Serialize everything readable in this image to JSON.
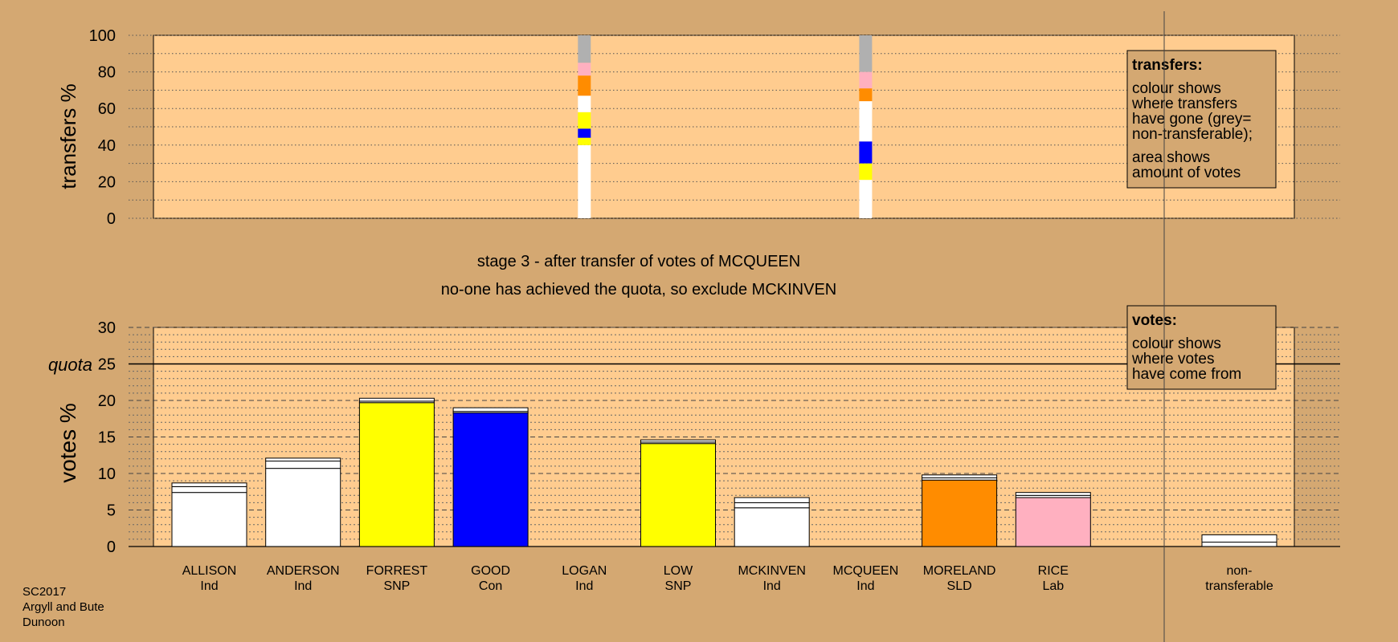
{
  "chart_data": {
    "type": "bar",
    "colors": {
      "background": "#D4A872",
      "plot_background": "#FFCC8F",
      "Ind": "#FFFFFF",
      "SNP": "#FFFF00",
      "Con": "#0000FF",
      "SLD": "#FF8C00",
      "Lab": "#FFB0C0",
      "non_transferable": "#B0B0B0"
    },
    "top": {
      "ylabel": "transfers %",
      "ylim": [
        0,
        100
      ],
      "yticks": [
        0,
        20,
        40,
        60,
        80,
        100
      ],
      "transfer_columns": [
        {
          "category": "LOGAN",
          "segments": [
            {
              "to": "Ind",
              "from": 0,
              "to_value": 40
            },
            {
              "to": "SNP",
              "from": 40,
              "to_value": 44
            },
            {
              "to": "Con",
              "from": 44,
              "to_value": 49
            },
            {
              "to": "SNP",
              "from": 49,
              "to_value": 58
            },
            {
              "to": "Ind",
              "from": 58,
              "to_value": 67
            },
            {
              "to": "SLD",
              "from": 67,
              "to_value": 78
            },
            {
              "to": "Lab",
              "from": 78,
              "to_value": 85
            },
            {
              "to": "non_transferable",
              "from": 85,
              "to_value": 100
            }
          ]
        },
        {
          "category": "MCQUEEN",
          "segments": [
            {
              "to": "Ind",
              "from": 0,
              "to_value": 21
            },
            {
              "to": "SNP",
              "from": 21,
              "to_value": 30
            },
            {
              "to": "Con",
              "from": 30,
              "to_value": 42
            },
            {
              "to": "Ind",
              "from": 42,
              "to_value": 64
            },
            {
              "to": "SLD",
              "from": 64,
              "to_value": 71
            },
            {
              "to": "Lab",
              "from": 71,
              "to_value": 80
            },
            {
              "to": "non_transferable",
              "from": 80,
              "to_value": 100
            }
          ]
        }
      ],
      "legend": {
        "title": "transfers:",
        "lines1": [
          "colour shows",
          "where transfers",
          "have gone (grey=",
          "non-transferable);"
        ],
        "lines2": [
          "area shows",
          "amount of votes"
        ]
      }
    },
    "stage_text": "stage 3 - after transfer of votes of MCQUEEN",
    "status_text": "no-one has achieved the quota, so exclude MCKINVEN",
    "bottom": {
      "ylabel": "votes %",
      "ylim": [
        0,
        30
      ],
      "yticks": [
        0,
        5,
        10,
        15,
        20,
        25,
        30
      ],
      "quota": 25,
      "quota_label": "quota",
      "legend": {
        "title": "votes:",
        "lines": [
          "colour shows",
          "where votes",
          "have come from"
        ]
      }
    },
    "categories": [
      {
        "name": "ALLISON",
        "party": "Ind",
        "segments": [
          7.4,
          0.8,
          0.5
        ]
      },
      {
        "name": "ANDERSON",
        "party": "Ind",
        "segments": [
          10.7,
          1.0,
          0.4
        ]
      },
      {
        "name": "FORREST",
        "party": "SNP",
        "segments": [
          19.7,
          0.2,
          0.4
        ]
      },
      {
        "name": "GOOD",
        "party": "Con",
        "segments": [
          18.3,
          0.2,
          0.5
        ]
      },
      {
        "name": "LOGAN",
        "party": "Ind",
        "segments": []
      },
      {
        "name": "LOW",
        "party": "SNP",
        "segments": [
          14.1,
          0.2,
          0.3
        ]
      },
      {
        "name": "MCKINVEN",
        "party": "Ind",
        "segments": [
          5.3,
          0.7,
          0.7
        ]
      },
      {
        "name": "MCQUEEN",
        "party": "Ind",
        "segments": []
      },
      {
        "name": "MORELAND",
        "party": "SLD",
        "segments": [
          9.1,
          0.3,
          0.4
        ]
      },
      {
        "name": "RICE",
        "party": "Lab",
        "segments": [
          6.7,
          0.3,
          0.4
        ]
      }
    ],
    "non_transferable": {
      "name": "non-",
      "party": "transferable",
      "segments": [
        0.6,
        1.0
      ]
    },
    "footer": [
      "SC2017",
      "Argyll and Bute",
      "Dunoon"
    ]
  }
}
